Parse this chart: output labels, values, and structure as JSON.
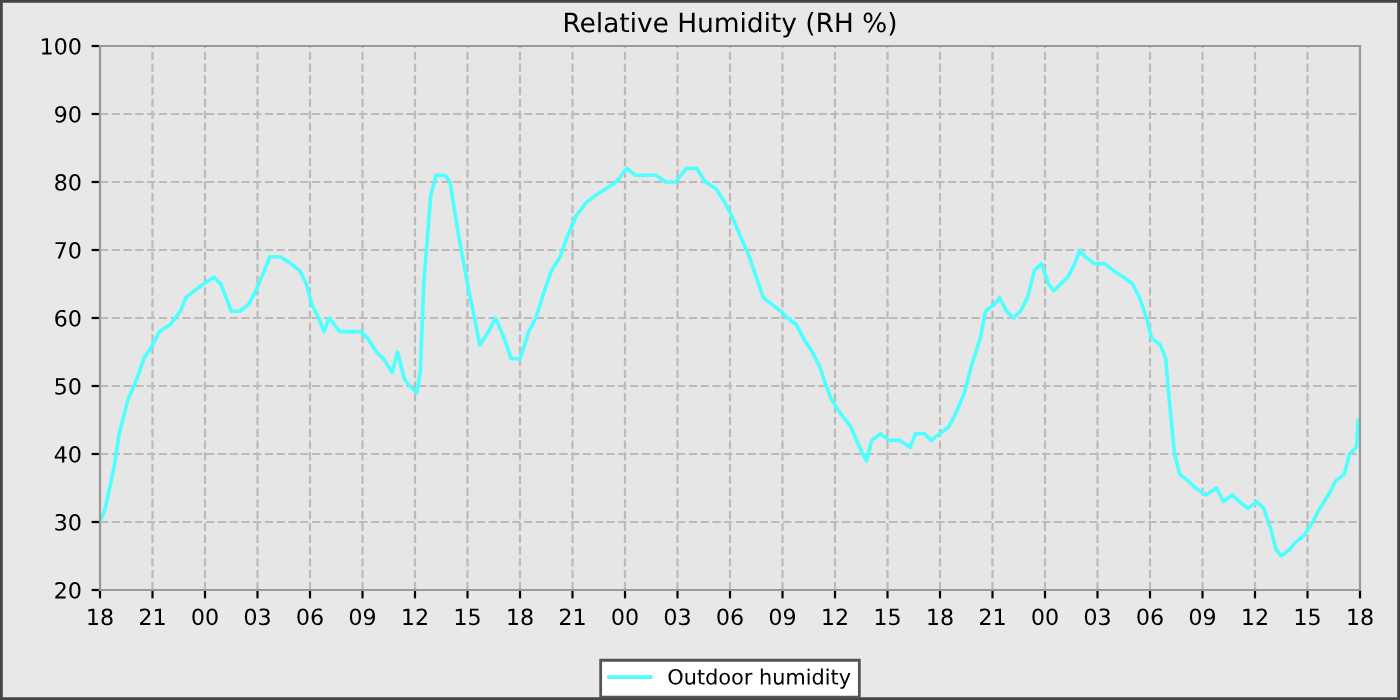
{
  "chart_data": {
    "type": "line",
    "title": "Relative Humidity (RH %)",
    "x": [
      18,
      18.3,
      18.8,
      19.1,
      19.6,
      20.1,
      20.5,
      21.0,
      21.4,
      22.0,
      22.6,
      22.9,
      23.4,
      23.9,
      24.5,
      24.9,
      25.2,
      25.5,
      26.0,
      26.5,
      26.9,
      27.4,
      27.7,
      28.3,
      28.9,
      29.4,
      29.8,
      30.1,
      30.5,
      30.8,
      31.1,
      31.7,
      32.3,
      32.9,
      33.3,
      33.8,
      34.2,
      34.7,
      35.0,
      35.4,
      35.7,
      36.1,
      36.3,
      36.5,
      36.9,
      37.2,
      37.7,
      38.0,
      38.5,
      39.0,
      39.4,
      39.7,
      40.2,
      40.6,
      41.1,
      41.5,
      42.0,
      42.5,
      42.9,
      43.4,
      43.8,
      44.3,
      44.7,
      45.2,
      45.8,
      46.3,
      46.9,
      47.5,
      48.1,
      48.6,
      49.2,
      49.8,
      50.3,
      50.9,
      51.5,
      52.1,
      52.6,
      53.2,
      53.7,
      54.1,
      54.6,
      55.1,
      55.5,
      55.9,
      56.4,
      56.9,
      57.3,
      57.8,
      58.2,
      58.7,
      59.1,
      59.5,
      59.8,
      60.3,
      60.9,
      61.4,
      61.8,
      62.1,
      62.6,
      63.1,
      63.7,
      64.3,
      64.6,
      65.1,
      65.5,
      66.0,
      66.5,
      66.9,
      67.4,
      67.8,
      68.3,
      68.6,
      69.1,
      69.4,
      69.8,
      70.2,
      70.6,
      71.0,
      71.4,
      71.8,
      72.2,
      72.5,
      72.9,
      73.3,
      73.7,
      74.0,
      74.3,
      74.8,
      75.4,
      75.9,
      76.5,
      77.0,
      77.4,
      77.8,
      78.1,
      78.6,
      78.9,
      79.1,
      79.4,
      79.7,
      80.2,
      80.6,
      81.2,
      81.8,
      82.2,
      82.7,
      83.1,
      83.6,
      84.1,
      84.5,
      84.9,
      85.2,
      85.5,
      86.0,
      86.3,
      86.8,
      87.3,
      87.7,
      88.2,
      88.6,
      89.1,
      89.4,
      89.8,
      89.9
    ],
    "series": [
      {
        "name": "Outdoor humidity",
        "color": "#4dffff",
        "values": [
          30,
          32,
          38,
          43,
          48,
          51,
          54,
          56,
          58,
          59,
          61,
          63,
          64,
          65,
          66,
          65,
          63,
          61,
          61,
          62,
          64,
          67,
          69,
          69,
          68,
          67,
          65,
          62,
          60,
          58,
          60,
          58,
          58,
          58,
          57,
          55,
          54,
          52,
          55,
          51,
          50,
          49,
          52,
          65,
          78,
          81,
          81,
          80,
          72,
          65,
          60,
          56,
          58,
          60,
          57,
          54,
          54,
          58,
          60,
          64,
          67,
          69,
          72,
          75,
          77,
          78,
          79,
          80,
          82,
          81,
          81,
          81,
          80,
          80,
          82,
          82,
          80,
          79,
          77,
          75,
          72,
          69,
          66,
          63,
          62,
          61,
          60,
          59,
          57,
          55,
          53,
          50,
          48,
          46,
          44,
          41,
          39,
          42,
          43,
          42,
          42,
          41,
          43,
          43,
          42,
          43,
          44,
          46,
          49,
          53,
          57,
          61,
          62,
          63,
          61,
          60,
          61,
          63,
          67,
          68,
          65,
          64,
          65,
          66,
          68,
          70,
          69,
          68,
          68,
          67,
          66,
          65,
          63,
          60,
          57,
          56,
          54,
          48,
          40,
          37,
          36,
          35,
          34,
          35,
          33,
          34,
          33,
          32,
          33,
          32,
          29,
          26,
          25,
          26,
          27,
          28,
          30,
          32,
          34,
          36,
          37,
          40,
          41,
          45
        ]
      }
    ],
    "xlim": [
      18,
      90
    ],
    "xticks": [
      18,
      21,
      {
        "value": 24,
        "label": "00"
      },
      {
        "value": 27,
        "label": "03"
      },
      {
        "value": 30,
        "label": "06"
      },
      {
        "value": 33,
        "label": "09"
      },
      {
        "value": 36,
        "label": "12"
      },
      {
        "value": 39,
        "label": "15"
      },
      {
        "value": 42,
        "label": "18"
      },
      {
        "value": 45,
        "label": "21"
      },
      {
        "value": 48,
        "label": "00"
      },
      {
        "value": 51,
        "label": "03"
      },
      {
        "value": 54,
        "label": "06"
      },
      {
        "value": 57,
        "label": "09"
      },
      {
        "value": 60,
        "label": "12"
      },
      {
        "value": 63,
        "label": "15"
      },
      {
        "value": 66,
        "label": "18"
      },
      {
        "value": 69,
        "label": "21"
      },
      {
        "value": 72,
        "label": "00"
      },
      {
        "value": 75,
        "label": "03"
      },
      {
        "value": 78,
        "label": "06"
      },
      {
        "value": 81,
        "label": "09"
      },
      {
        "value": 84,
        "label": "12"
      },
      {
        "value": 87,
        "label": "15"
      },
      {
        "value": 90,
        "label": "18"
      }
    ],
    "ylim": [
      20,
      100
    ],
    "yticks": [
      20,
      30,
      40,
      50,
      60,
      70,
      80,
      90,
      100
    ],
    "grid": true,
    "legend": "bottom",
    "line_style": "solid",
    "marker": "none"
  }
}
